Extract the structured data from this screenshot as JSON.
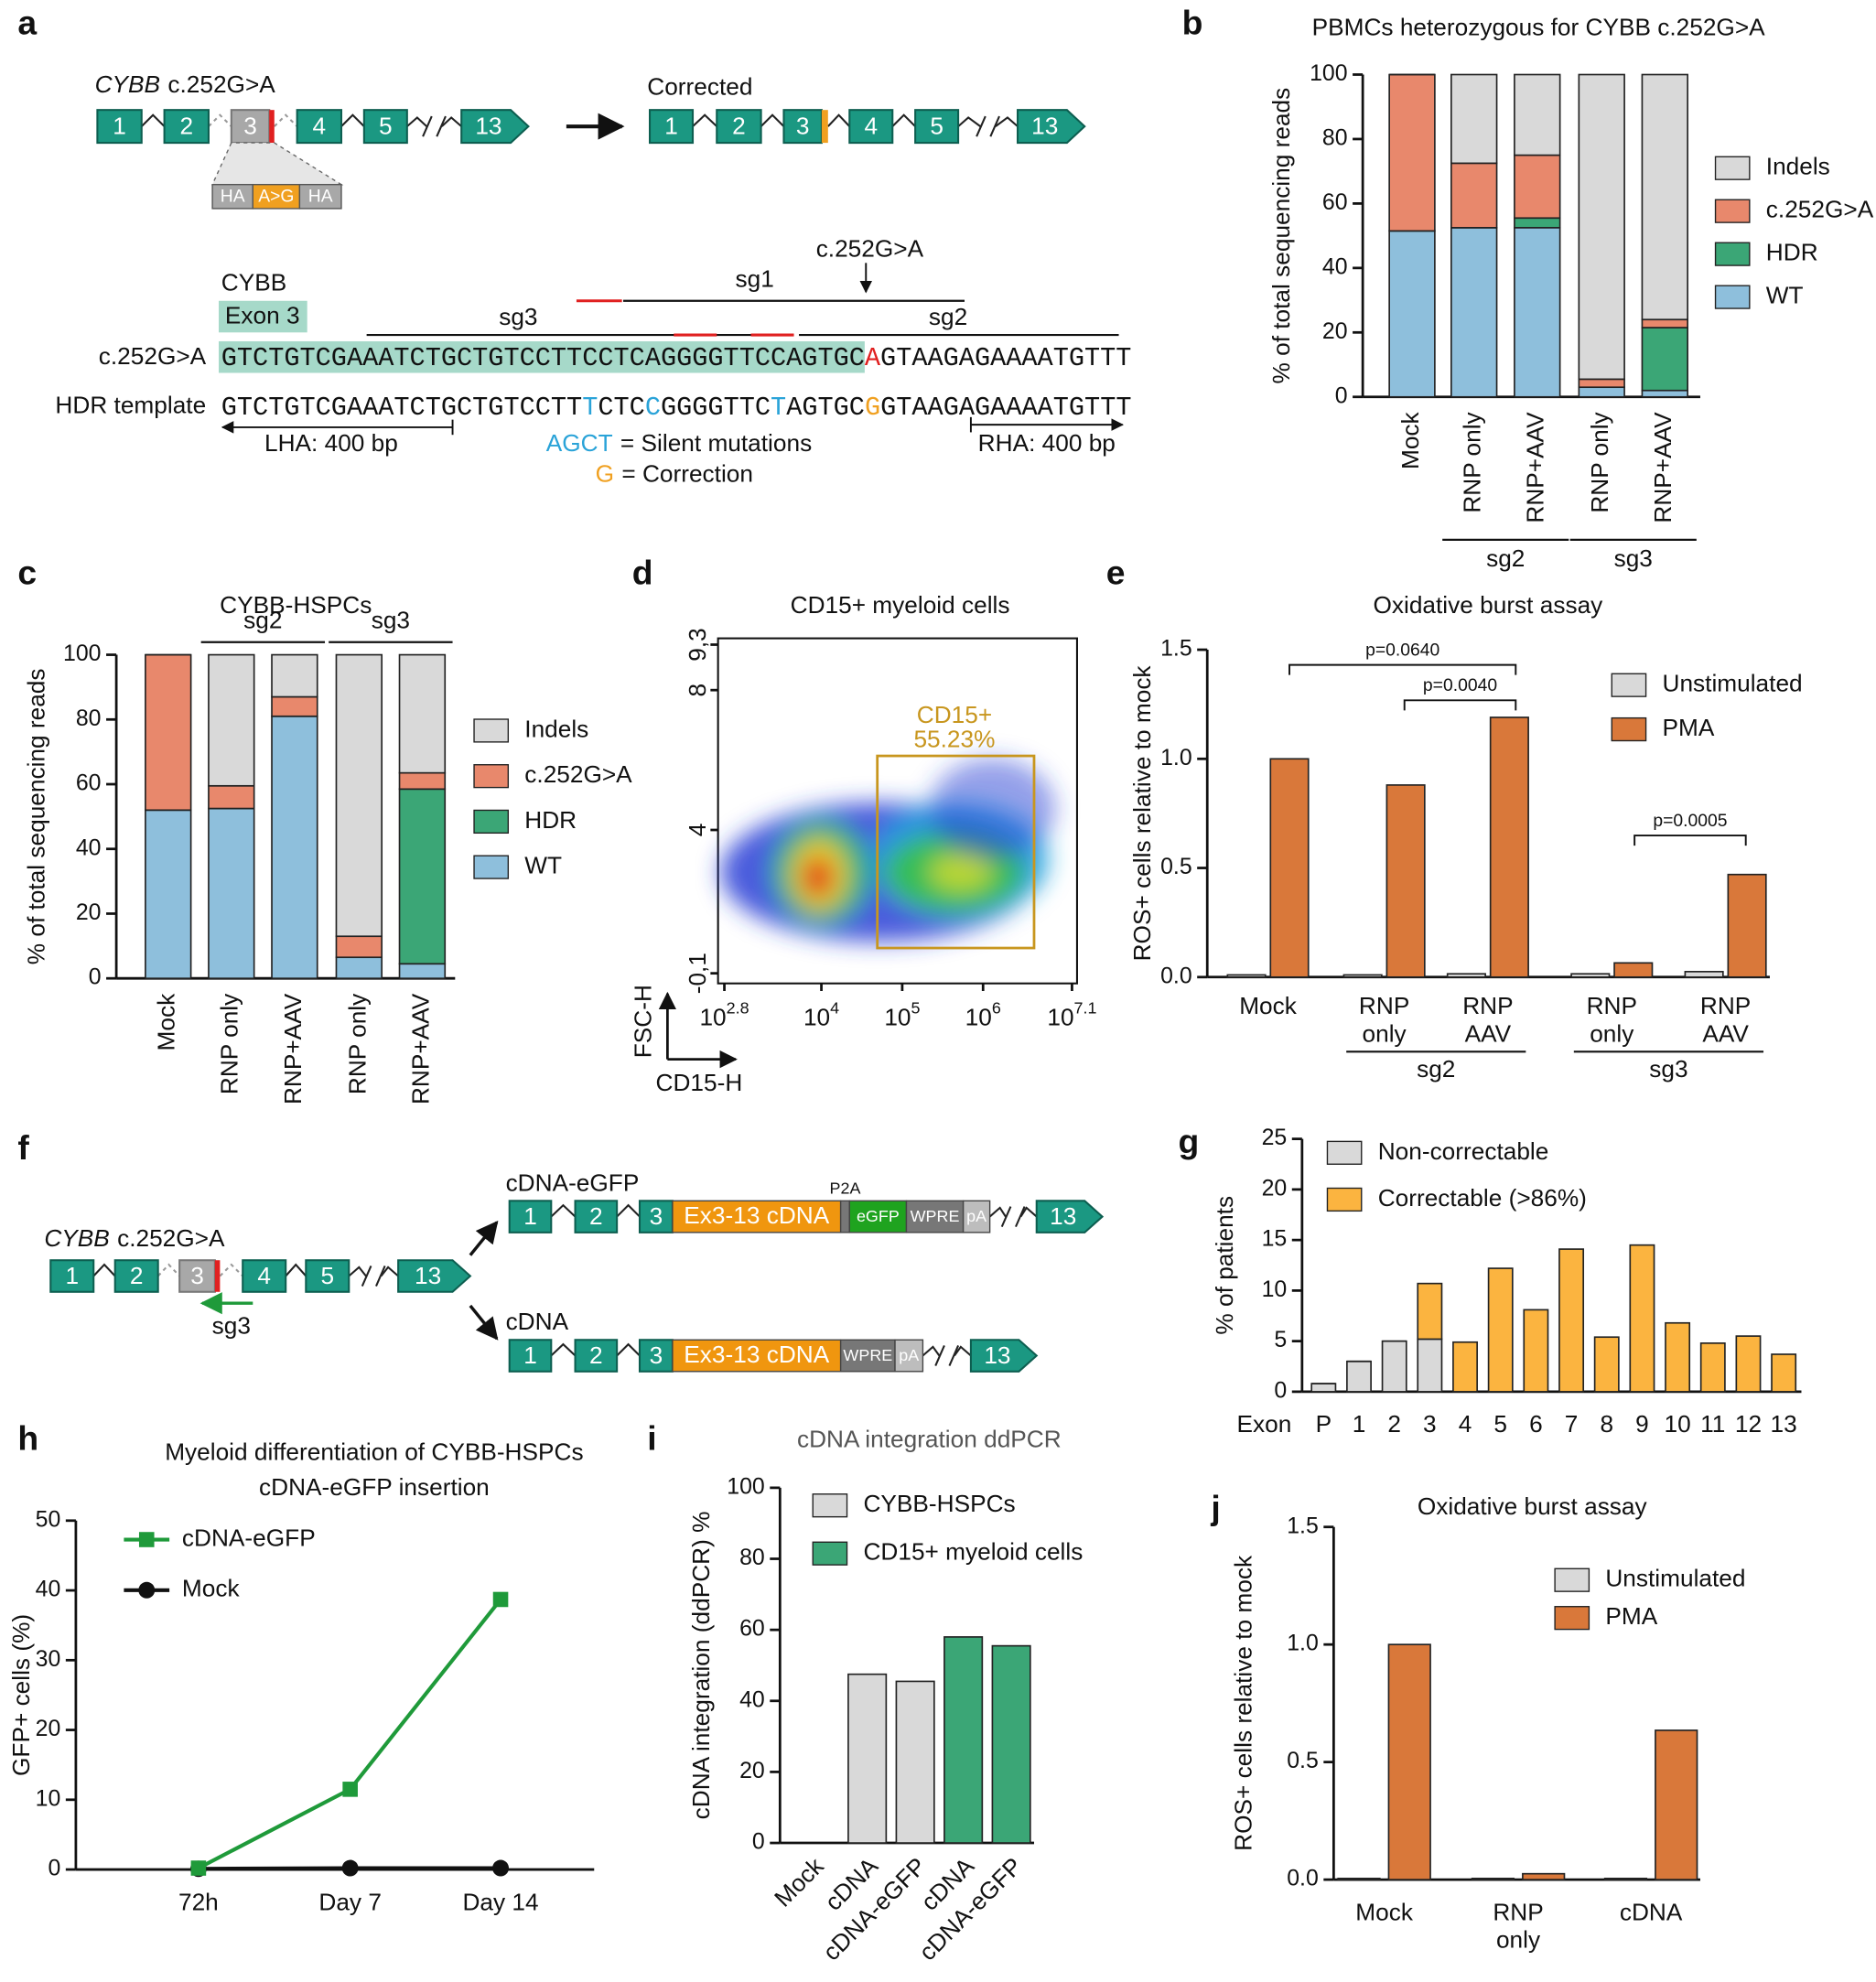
{
  "panel_labels": [
    "a",
    "b",
    "c",
    "d",
    "e",
    "f",
    "g",
    "h",
    "i",
    "j"
  ],
  "panel_a": {
    "gene": "CYBB",
    "variant": "c.252G>A",
    "exons": [
      "1",
      "2",
      "3",
      "4",
      "5",
      "13"
    ],
    "template": [
      "HA",
      "A>G",
      "HA"
    ],
    "corrected_title": "Corrected",
    "corrected_exons": [
      "1",
      "2",
      "3",
      "4",
      "5",
      "13"
    ],
    "seq_gene": "CYBB",
    "seq_exon": "Exon 3",
    "guides": [
      "sg1",
      "sg2",
      "sg3"
    ],
    "site_label": "c.252G>A",
    "rows": [
      {
        "label": "c.252G>A",
        "seq": [
          "GTCTGTCGAAATCTGCTGTCCTTCCTCAGGGGTTCCAGTGC",
          "A",
          "GTAAGAGAAAATGTTT"
        ]
      },
      {
        "label": "HDR template",
        "seq": [
          "GTCTGTCGAAATCTGCTGTCCTT",
          "T",
          "CTC",
          "C",
          "GGGGTTC",
          "T",
          "AGTGC",
          "G",
          "GTAAGAGAAAATGTTT"
        ]
      }
    ],
    "arms": [
      "LHA: 400 bp",
      "RHA: 400 bp"
    ],
    "key": [
      [
        "AGCT",
        "= Silent mutations"
      ],
      [
        "G",
        "= Correction"
      ]
    ]
  },
  "panel_f": {
    "gene": "CYBB",
    "variant": "c.252G>A",
    "exons": [
      "1",
      "2",
      "3",
      "4",
      "5",
      "13"
    ],
    "guide": "sg3",
    "constructs": [
      {
        "name": "cDNA-eGFP",
        "exons": [
          "1",
          "2",
          "3",
          "13"
        ],
        "parts": [
          "Ex3-13 cDNA",
          "P2A",
          "eGFP",
          "WPRE",
          "pA"
        ]
      },
      {
        "name": "cDNA",
        "exons": [
          "1",
          "2",
          "3",
          "13"
        ],
        "parts": [
          "Ex3-13 cDNA",
          "WPRE",
          "pA"
        ]
      }
    ]
  },
  "chart_data": [
    {
      "type": "stacked-bar",
      "title": "PBMCs heterozygous for CYBB c.252G>A",
      "y_label": "% of total sequencing reads",
      "categories": [
        "Mock",
        "RNP only",
        "RNP+AAV",
        "RNP only",
        "RNP+AAV"
      ],
      "groups": [
        "sg2",
        "sg3"
      ],
      "series": [
        {
          "name": "WT",
          "color": "#8ebfdc",
          "values": [
            51.5,
            52.5,
            52.5,
            3,
            2
          ]
        },
        {
          "name": "HDR",
          "color": "#3ba676",
          "values": [
            0,
            0,
            3,
            0,
            19.5
          ]
        },
        {
          "name": "c.252G>A",
          "color": "#e8886c",
          "values": [
            48.5,
            20,
            19.5,
            2.5,
            2.5
          ]
        },
        {
          "name": "Indels",
          "color": "#d9d9d9",
          "values": [
            0,
            27.5,
            25,
            94.5,
            76
          ]
        }
      ],
      "legend_reversed": true,
      "ylim": [
        0,
        100
      ],
      "yticks": [
        0,
        20,
        40,
        60,
        80,
        100
      ]
    },
    {
      "type": "stacked-bar",
      "title": "CYBB-HSPCs",
      "y_label": "% of total sequencing reads",
      "categories": [
        "Mock",
        "RNP only",
        "RNP+AAV",
        "RNP only",
        "RNP+AAV"
      ],
      "groups": [
        "sg2",
        "sg3"
      ],
      "series": [
        {
          "name": "WT",
          "color": "#8ebfdc",
          "values": [
            52,
            52.5,
            81,
            6.5,
            4.5
          ]
        },
        {
          "name": "HDR",
          "color": "#3ba676",
          "values": [
            0,
            0,
            0,
            0,
            54
          ]
        },
        {
          "name": "c.252G>A",
          "color": "#e8886c",
          "values": [
            48,
            7,
            6,
            6.5,
            5
          ]
        },
        {
          "name": "Indels",
          "color": "#d9d9d9",
          "values": [
            0,
            40.5,
            13,
            87,
            36.5
          ]
        }
      ],
      "legend_reversed": true,
      "ylim": [
        0,
        100
      ],
      "yticks": [
        0,
        20,
        40,
        60,
        80,
        100
      ]
    },
    {
      "type": "density",
      "title": "CD15+ myeloid cells",
      "x_label": "CD15-H",
      "y_label": "FSC-H",
      "xlim": [
        2.8,
        7.1
      ],
      "xticks": [
        {
          "value": 2.8,
          "label": "10"
        },
        {
          "value": 4,
          "label": "10"
        },
        {
          "value": 5,
          "label": "10"
        },
        {
          "value": 6,
          "label": "10"
        },
        {
          "value": 7.1,
          "label": "10"
        }
      ],
      "ylim": [
        -0.1,
        9.3
      ],
      "yticks": [
        {
          "value": -0.1,
          "label": "-0,1"
        },
        4,
        8,
        {
          "value": 9.3,
          "label": "9,3"
        }
      ],
      "gate_label": [
        "CD15+",
        "55.23%"
      ],
      "gate_color": "#c8961e"
    },
    {
      "type": "grouped-bar",
      "title": "Oxidative burst assay",
      "y_label": "ROS+ cells relative to mock",
      "categories": [
        [
          "Mock"
        ],
        [
          "RNP",
          "only"
        ],
        [
          "RNP",
          "AAV"
        ],
        [
          "RNP",
          "only"
        ],
        [
          "RNP",
          "AAV"
        ]
      ],
      "groups": [
        "sg2",
        "sg3"
      ],
      "series": [
        {
          "name": "Unstimulated",
          "color": "#d9d9d9",
          "values": [
            0.01,
            0.01,
            0.015,
            0.015,
            0.025
          ]
        },
        {
          "name": "PMA",
          "color": "#d9783a",
          "values": [
            1.0,
            0.88,
            1.19,
            0.065,
            0.47
          ]
        }
      ],
      "annotations": [
        "p=0.0640",
        "p=0.0040",
        "p=0.0005"
      ],
      "ylim": [
        0,
        1.5
      ],
      "yticks": [
        {
          "value": 0,
          "label": "0.0"
        },
        {
          "value": 0.5,
          "label": "0.5"
        },
        {
          "value": 1,
          "label": "1.0"
        },
        {
          "value": 1.5,
          "label": "1.5"
        }
      ]
    },
    {
      "type": "stacked-bar",
      "y_label": "% of patients",
      "x_label": "Exon",
      "categories": [
        "P",
        "1",
        "2",
        "3",
        "4",
        "5",
        "6",
        "7",
        "8",
        "9",
        "10",
        "11",
        "12",
        "13"
      ],
      "series": [
        {
          "name": "Non-correctable",
          "color": "#d9d9d9",
          "values": [
            0.8,
            3,
            5,
            5.2,
            0,
            0,
            0,
            0,
            0,
            0,
            0,
            0,
            0,
            0
          ]
        },
        {
          "name": "Correctable (>86%)",
          "color": "#fbb440",
          "values": [
            0,
            0,
            0,
            5.5,
            4.9,
            12.2,
            8.1,
            14.1,
            5.4,
            14.5,
            6.8,
            4.8,
            5.5,
            3.7
          ]
        }
      ],
      "ylim": [
        0,
        25
      ],
      "yticks": [
        0,
        5,
        10,
        15,
        20,
        25
      ]
    },
    {
      "type": "line",
      "title": [
        "Myeloid differentiation of CYBB-HSPCs",
        "cDNA-eGFP insertion"
      ],
      "y_label": "GFP+ cells (%)",
      "categories": [
        "72h",
        "Day 7",
        "Day 14"
      ],
      "series": [
        {
          "name": "cDNA-eGFP",
          "color": "#1f9a3a",
          "marker": "square",
          "values": [
            0.2,
            11.5,
            38.7
          ]
        },
        {
          "name": "Mock",
          "color": "#111111",
          "marker": "circle",
          "values": [
            0.1,
            0.2,
            0.2
          ]
        }
      ],
      "ylim": [
        0,
        50
      ],
      "yticks": [
        0,
        10,
        20,
        30,
        40,
        50
      ]
    },
    {
      "type": "bar",
      "title": "cDNA integration ddPCR",
      "y_label": "cDNA integration (ddPCR) %",
      "categories": [
        "Mock",
        "cDNA",
        "cDNA-eGFP",
        "cDNA",
        "cDNA-eGFP"
      ],
      "series": [
        {
          "name": "CYBB-HSPCs",
          "color": "#d9d9d9",
          "values": [
            0,
            47.5,
            45.5,
            null,
            null
          ]
        },
        {
          "name": "CD15+ myeloid cells",
          "color": "#3ba676",
          "values": [
            null,
            null,
            null,
            58,
            55.5
          ]
        }
      ],
      "ylim": [
        0,
        100
      ],
      "yticks": [
        0,
        20,
        40,
        60,
        80,
        100
      ]
    },
    {
      "type": "grouped-bar",
      "title": "Oxidative burst assay",
      "y_label": "ROS+ cells relative to mock",
      "categories": [
        [
          "Mock"
        ],
        [
          "RNP",
          "only"
        ],
        [
          "cDNA"
        ]
      ],
      "series": [
        {
          "name": "Unstimulated",
          "color": "#d9d9d9",
          "values": [
            0.005,
            0.005,
            0.005
          ]
        },
        {
          "name": "PMA",
          "color": "#d9783a",
          "values": [
            1.0,
            0.025,
            0.635
          ]
        }
      ],
      "ylim": [
        0,
        1.5
      ],
      "yticks": [
        {
          "value": 0,
          "label": "0.0"
        },
        {
          "value": 0.5,
          "label": "0.5"
        },
        {
          "value": 1,
          "label": "1.0"
        },
        {
          "value": 1.5,
          "label": "1.5"
        }
      ]
    }
  ]
}
